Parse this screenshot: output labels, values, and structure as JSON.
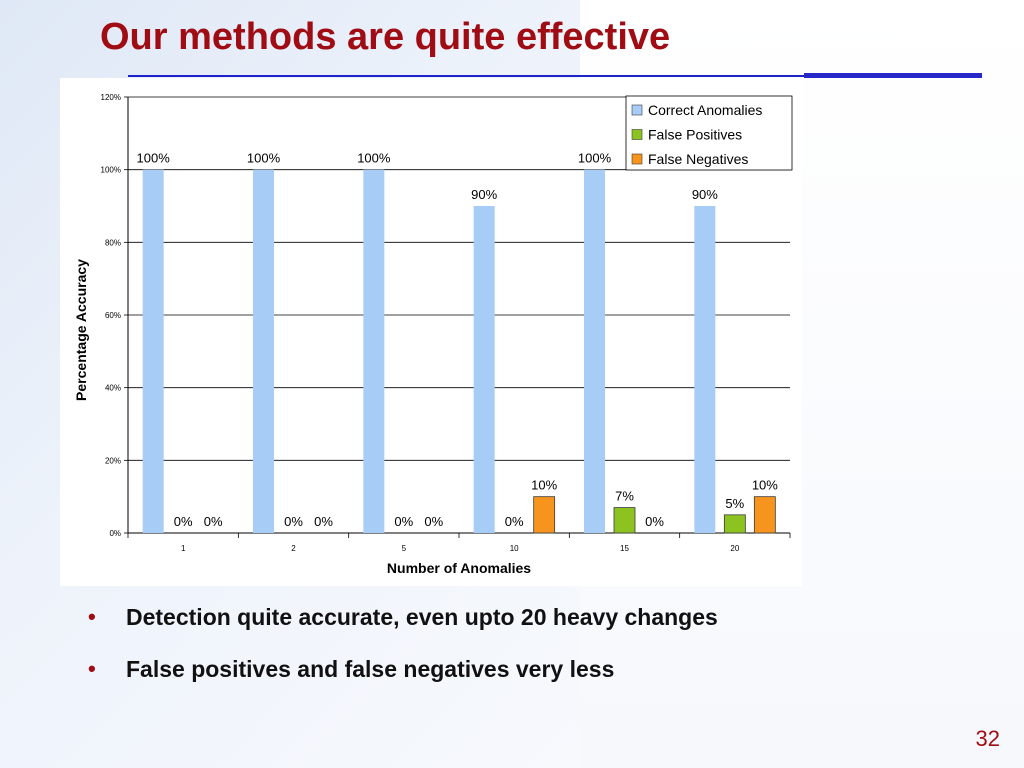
{
  "slide": {
    "title": "Our methods are quite effective",
    "bullets": [
      "Detection quite accurate, even upto 20 heavy changes",
      "False positives and false negatives very less"
    ],
    "page_number": "32"
  },
  "colors": {
    "title": "#a00c14",
    "correct": "#a7cdf6",
    "false_pos": "#8cc321",
    "false_neg": "#f7941d",
    "rule": "#2628c8"
  },
  "chart_data": {
    "type": "bar",
    "xlabel": "Number of Anomalies",
    "ylabel": "Percentage Accuracy",
    "ylim": [
      0,
      120
    ],
    "yticks": [
      "0%",
      "20%",
      "40%",
      "60%",
      "80%",
      "100%",
      "120%"
    ],
    "categories": [
      "1",
      "2",
      "5",
      "10",
      "15",
      "20"
    ],
    "series": [
      {
        "name": "Correct Anomalies",
        "values": [
          100,
          100,
          100,
          90,
          100,
          90
        ],
        "labels": [
          "100%",
          "100%",
          "100%",
          "90%",
          "100%",
          "90%"
        ]
      },
      {
        "name": "False Positives",
        "values": [
          0,
          0,
          0,
          0,
          7,
          5
        ],
        "labels": [
          "0%",
          "0%",
          "0%",
          "0%",
          "7%",
          "5%"
        ]
      },
      {
        "name": "False Negatives",
        "values": [
          0,
          0,
          0,
          10,
          0,
          10
        ],
        "labels": [
          "0%",
          "0%",
          "0%",
          "10%",
          "0%",
          "10%"
        ]
      }
    ],
    "grid": true,
    "legend": "top-right"
  }
}
